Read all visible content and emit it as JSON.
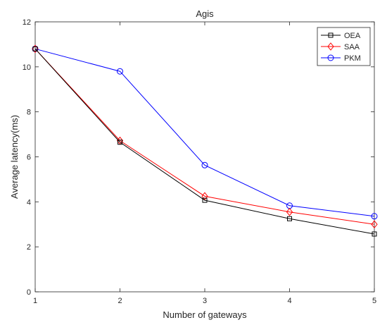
{
  "chart_data": {
    "type": "line",
    "title": "Agis",
    "xlabel": "Number of gateways",
    "ylabel": "Average latency(ms)",
    "x": [
      1,
      2,
      3,
      4,
      5
    ],
    "xlim": [
      1,
      5
    ],
    "ylim": [
      0,
      12
    ],
    "xticks": [
      "1",
      "2",
      "3",
      "4",
      "5"
    ],
    "yticks": [
      "0",
      "2",
      "4",
      "6",
      "8",
      "10",
      "12"
    ],
    "grid": false,
    "legend_position": "top-right",
    "series": [
      {
        "name": "OEA",
        "values": [
          10.8,
          6.65,
          4.07,
          3.25,
          2.57
        ],
        "color": "#000000",
        "marker": "square"
      },
      {
        "name": "SAA",
        "values": [
          10.8,
          6.72,
          4.25,
          3.55,
          3.0
        ],
        "color": "#ff0000",
        "marker": "diamond"
      },
      {
        "name": "PKM",
        "values": [
          10.8,
          9.8,
          5.63,
          3.83,
          3.36
        ],
        "color": "#0000ff",
        "marker": "circle"
      }
    ]
  }
}
